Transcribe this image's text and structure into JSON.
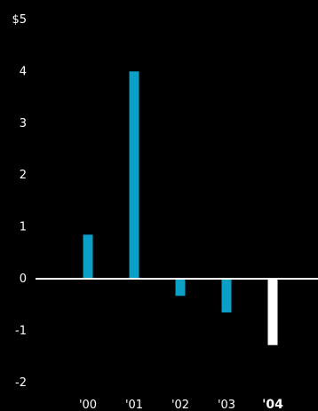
{
  "colors": {
    "background": "#000000",
    "bar": "#0aa0c8",
    "bar_highlight": "#ffffff",
    "axis": "#ffffff",
    "text": "#ffffff"
  },
  "chart_data": {
    "type": "bar",
    "categories": [
      "'00",
      "'01",
      "'02",
      "'03",
      "'04"
    ],
    "values": [
      0.85,
      4.0,
      -0.33,
      -0.65,
      -1.28
    ],
    "highlight_category": "'04",
    "y_tick_labels": [
      "$5",
      "4",
      "3",
      "2",
      "1",
      "0",
      "-1",
      "-2"
    ],
    "y_tick_values": [
      5,
      4,
      3,
      2,
      1,
      0,
      -1,
      -2
    ],
    "ylim": [
      -2,
      5
    ],
    "grid": false,
    "legend": "none",
    "title": "",
    "xlabel": "",
    "ylabel": ""
  }
}
